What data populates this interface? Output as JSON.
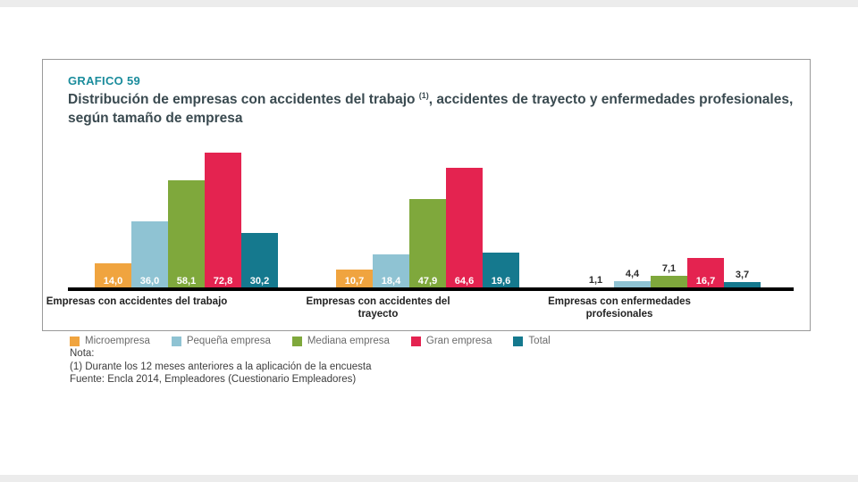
{
  "card": {
    "kicker": "GRAFICO 59",
    "title_part1": "Distribución de empresas con accidentes del trabajo ",
    "title_sup": "(1)",
    "title_part2": ", accidentes de trayecto y enfermedades profesionales, según tamaño de empresa"
  },
  "chart_data": {
    "type": "bar",
    "title": "Distribución de empresas con accidentes del trabajo (1), accidentes de trayecto y enfermedades profesionales, según tamaño de empresa",
    "ylim": [
      0,
      80
    ],
    "grid": false,
    "legend_position": "bottom",
    "categories": [
      {
        "lines": [
          "Empresas con accidentes del trabajo"
        ]
      },
      {
        "lines": [
          "Empresas con accidentes del",
          "trayecto"
        ]
      },
      {
        "lines": [
          "Empresas con enfermedades",
          "profesionales"
        ]
      }
    ],
    "series": [
      {
        "name": "Microempresa",
        "color": "#f0a43f",
        "values": [
          14.0,
          10.7,
          1.1
        ]
      },
      {
        "name": "Pequeña empresa",
        "color": "#8fc3d3",
        "values": [
          36.0,
          18.4,
          4.4
        ]
      },
      {
        "name": "Mediana empresa",
        "color": "#7fa83c",
        "values": [
          58.1,
          47.9,
          7.1
        ]
      },
      {
        "name": "Gran empresa",
        "color": "#e42350",
        "values": [
          72.8,
          64.6,
          16.7
        ]
      },
      {
        "name": "Total",
        "color": "#15798e",
        "values": [
          30.2,
          19.6,
          3.7
        ]
      }
    ],
    "value_labels": [
      [
        "14,0",
        "36,0",
        "58,1",
        "72,8",
        "30,2"
      ],
      [
        "10,7",
        "18,4",
        "47,9",
        "64,6",
        "19,6"
      ],
      [
        "1,1",
        "4,4",
        "7,1",
        "16,7",
        "3,7"
      ]
    ]
  },
  "notes": {
    "nota": "Nota:",
    "line1": "(1) Durante los 12 meses anteriores a la aplicación de la encuesta",
    "line2": "Fuente: Encla 2014, Empleadores (Cuestionario Empleadores)"
  }
}
